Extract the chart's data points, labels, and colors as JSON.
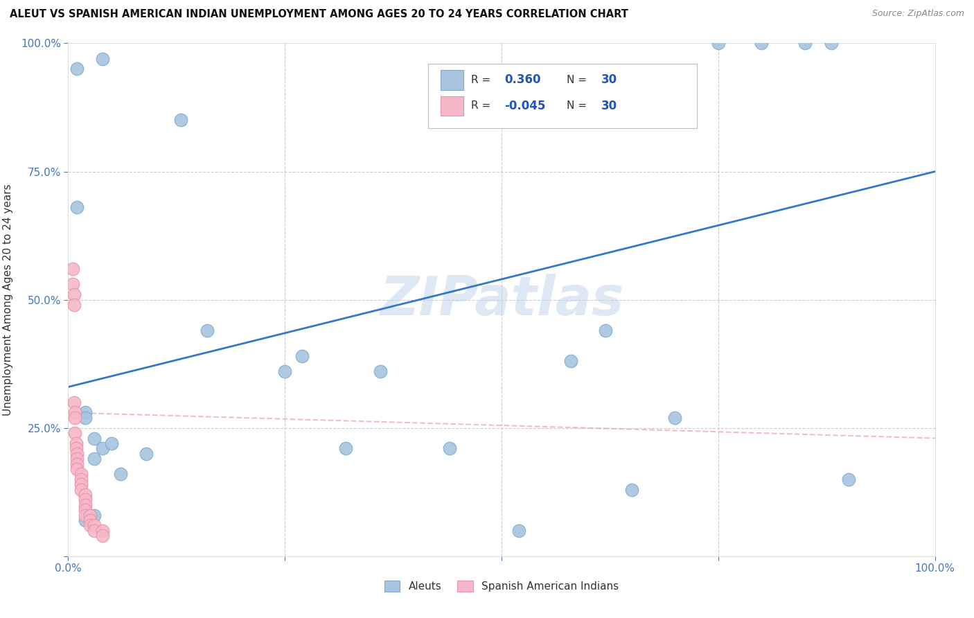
{
  "title": "ALEUT VS SPANISH AMERICAN INDIAN UNEMPLOYMENT AMONG AGES 20 TO 24 YEARS CORRELATION CHART",
  "source": "Source: ZipAtlas.com",
  "ylabel": "Unemployment Among Ages 20 to 24 years",
  "xlim": [
    0,
    1.0
  ],
  "ylim": [
    0,
    1.0
  ],
  "grid_color": "#cccccc",
  "aleut_color": "#a8c4e0",
  "aleut_edge_color": "#7aaad0",
  "spanish_color": "#f5b8c8",
  "spanish_edge_color": "#e890a8",
  "trendline_aleut_color": "#3377cc",
  "trendline_spanish_color": "#e890a8",
  "trendline_aleut_b0": 0.33,
  "trendline_aleut_b1": 0.42,
  "trendline_spanish_b0": 0.28,
  "trendline_spanish_b1": -0.05,
  "R_aleut": "0.360",
  "N_aleut": "30",
  "R_spanish": "-0.045",
  "N_spanish": "30",
  "watermark": "ZIPatlas",
  "watermark_color": "#c8d8ee",
  "legend_label_aleut": "Aleuts",
  "legend_label_spanish": "Spanish American Indians",
  "aleuts_x": [
    0.01,
    0.04,
    0.13,
    0.01,
    0.02,
    0.02,
    0.03,
    0.03,
    0.04,
    0.06,
    0.16,
    0.27,
    0.36,
    0.58,
    0.7,
    0.75,
    0.8,
    0.85,
    0.88,
    0.02,
    0.03,
    0.05,
    0.09,
    0.44,
    0.52,
    0.65,
    0.25,
    0.32,
    0.62,
    0.9
  ],
  "aleuts_y": [
    0.95,
    0.97,
    0.85,
    0.68,
    0.28,
    0.27,
    0.23,
    0.19,
    0.21,
    0.16,
    0.44,
    0.39,
    0.36,
    0.38,
    0.27,
    1.0,
    1.0,
    1.0,
    1.0,
    0.07,
    0.08,
    0.22,
    0.2,
    0.21,
    0.05,
    0.13,
    0.36,
    0.21,
    0.44,
    0.15
  ],
  "spanish_x": [
    0.005,
    0.005,
    0.007,
    0.007,
    0.007,
    0.008,
    0.008,
    0.008,
    0.009,
    0.009,
    0.01,
    0.01,
    0.01,
    0.01,
    0.015,
    0.015,
    0.015,
    0.015,
    0.02,
    0.02,
    0.02,
    0.02,
    0.02,
    0.025,
    0.025,
    0.025,
    0.03,
    0.03,
    0.04,
    0.04
  ],
  "spanish_y": [
    0.56,
    0.53,
    0.51,
    0.49,
    0.3,
    0.28,
    0.27,
    0.24,
    0.22,
    0.21,
    0.2,
    0.19,
    0.18,
    0.17,
    0.16,
    0.15,
    0.14,
    0.13,
    0.12,
    0.11,
    0.1,
    0.09,
    0.08,
    0.08,
    0.07,
    0.06,
    0.06,
    0.05,
    0.05,
    0.04
  ]
}
